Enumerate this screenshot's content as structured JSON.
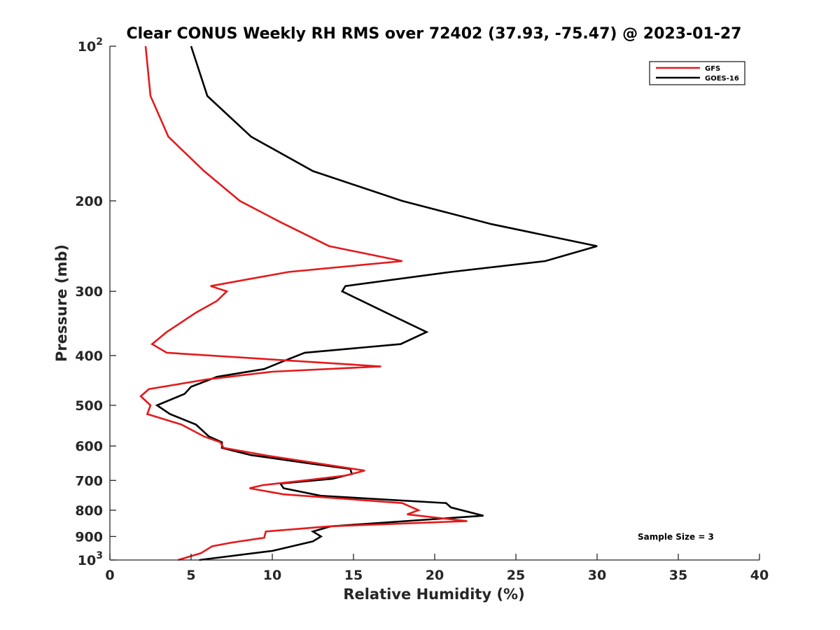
{
  "chart_data": {
    "type": "line",
    "title": "Clear CONUS Weekly RH RMS over 72402 (37.93, -75.47) @ 2023-01-27",
    "xlabel": "Relative Humidity (%)",
    "ylabel": "Pressure (mb)",
    "xlim": [
      0,
      40
    ],
    "ylim": [
      100,
      1000
    ],
    "y_scale": "log",
    "y_reversed": true,
    "x_ticks": [
      0,
      5,
      10,
      15,
      20,
      25,
      30,
      35,
      40
    ],
    "x_tick_labels": [
      "0",
      "5",
      "10",
      "15",
      "20",
      "25",
      "30",
      "35",
      "40"
    ],
    "y_ticks": [
      100,
      200,
      300,
      400,
      500,
      600,
      700,
      800,
      900,
      1000
    ],
    "y_tick_labels": [
      {
        "base": "10",
        "exp": "2"
      },
      {
        "text": "200"
      },
      {
        "text": "300"
      },
      {
        "text": "400"
      },
      {
        "text": "500"
      },
      {
        "text": "600"
      },
      {
        "text": "700"
      },
      {
        "text": "800"
      },
      {
        "text": "900"
      },
      {
        "base": "10",
        "exp": "3"
      }
    ],
    "legend_position": "top-right",
    "annotation": "Sample Size = 3",
    "series": [
      {
        "name": "GFS",
        "color": "#e41a1c",
        "points": [
          [
            2.2,
            100
          ],
          [
            2.5,
            125
          ],
          [
            3.6,
            150
          ],
          [
            5.8,
            175
          ],
          [
            8.0,
            200
          ],
          [
            10.5,
            220
          ],
          [
            13.5,
            245
          ],
          [
            18.0,
            262
          ],
          [
            11.0,
            275
          ],
          [
            6.2,
            293
          ],
          [
            7.2,
            300
          ],
          [
            6.6,
            313
          ],
          [
            5.3,
            330
          ],
          [
            3.5,
            360
          ],
          [
            2.6,
            380
          ],
          [
            3.5,
            395
          ],
          [
            16.7,
            420
          ],
          [
            10.0,
            430
          ],
          [
            6.0,
            445
          ],
          [
            2.4,
            465
          ],
          [
            1.9,
            480
          ],
          [
            2.5,
            500
          ],
          [
            2.3,
            520
          ],
          [
            4.4,
            545
          ],
          [
            5.8,
            575
          ],
          [
            6.8,
            590
          ],
          [
            7.0,
            605
          ],
          [
            9.5,
            625
          ],
          [
            13.0,
            650
          ],
          [
            15.7,
            670
          ],
          [
            14.5,
            685
          ],
          [
            12.0,
            700
          ],
          [
            9.4,
            715
          ],
          [
            8.6,
            725
          ],
          [
            10.7,
            745
          ],
          [
            18.0,
            775
          ],
          [
            19.0,
            800
          ],
          [
            18.3,
            815
          ],
          [
            22.0,
            840
          ],
          [
            13.5,
            860
          ],
          [
            9.6,
            880
          ],
          [
            9.5,
            905
          ],
          [
            7.5,
            925
          ],
          [
            6.3,
            940
          ],
          [
            5.6,
            970
          ],
          [
            4.2,
            1000
          ]
        ]
      },
      {
        "name": "GOES-16",
        "color": "#000000",
        "points": [
          [
            5.0,
            100
          ],
          [
            6.0,
            125
          ],
          [
            8.7,
            150
          ],
          [
            12.5,
            175
          ],
          [
            18.0,
            200
          ],
          [
            23.5,
            222
          ],
          [
            30.0,
            245
          ],
          [
            26.8,
            262
          ],
          [
            21.0,
            275
          ],
          [
            14.5,
            293
          ],
          [
            14.3,
            300
          ],
          [
            15.5,
            313
          ],
          [
            17.0,
            330
          ],
          [
            19.5,
            360
          ],
          [
            17.9,
            380
          ],
          [
            12.0,
            395
          ],
          [
            10.7,
            410
          ],
          [
            9.5,
            425
          ],
          [
            6.6,
            440
          ],
          [
            5.0,
            460
          ],
          [
            4.6,
            475
          ],
          [
            2.9,
            500
          ],
          [
            3.7,
            520
          ],
          [
            5.3,
            545
          ],
          [
            6.1,
            575
          ],
          [
            6.9,
            590
          ],
          [
            6.9,
            605
          ],
          [
            8.7,
            625
          ],
          [
            12.5,
            650
          ],
          [
            14.8,
            665
          ],
          [
            14.9,
            680
          ],
          [
            13.7,
            695
          ],
          [
            10.5,
            710
          ],
          [
            10.7,
            725
          ],
          [
            13.0,
            750
          ],
          [
            20.7,
            775
          ],
          [
            21.0,
            790
          ],
          [
            23.0,
            820
          ],
          [
            13.6,
            860
          ],
          [
            12.5,
            880
          ],
          [
            13.0,
            900
          ],
          [
            12.5,
            920
          ],
          [
            10.0,
            960
          ],
          [
            5.5,
            1000
          ]
        ]
      }
    ]
  }
}
